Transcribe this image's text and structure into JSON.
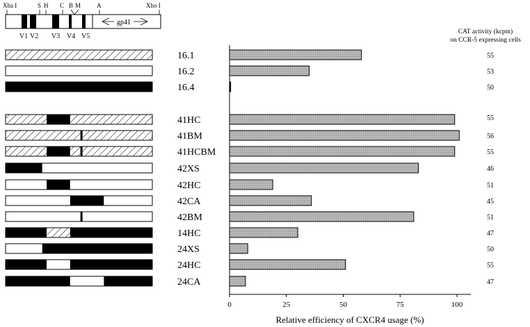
{
  "header_map": {
    "sites": [
      "Xba I",
      "S",
      "H",
      "C",
      "B",
      "M",
      "A",
      "Xho I"
    ],
    "variable_regions": [
      "V1",
      "V2",
      "V3",
      "V4",
      "V5"
    ],
    "gp41_label": "gp41"
  },
  "cat_header": {
    "line1": "CAT activity (kcpm)",
    "line2": "on CCR-5 expressing cells"
  },
  "chart_data": {
    "type": "bar",
    "orientation": "horizontal",
    "categories": [
      "16.1",
      "16.2",
      "16.4",
      "41HC",
      "41BM",
      "41HCBM",
      "42XS",
      "42HC",
      "42CA",
      "42BM",
      "14HC",
      "24XS",
      "24HC",
      "24CA"
    ],
    "groups": [
      [
        "16.1",
        "16.2",
        "16.4"
      ],
      [
        "41HC",
        "41BM",
        "41HCBM",
        "42XS",
        "42HC",
        "42CA",
        "42BM",
        "14HC",
        "24XS",
        "24HC",
        "24CA"
      ]
    ],
    "values": [
      58,
      35,
      0.5,
      99,
      101,
      99,
      83,
      19,
      36,
      81,
      30,
      8,
      51,
      7
    ],
    "cat_activity": [
      "55",
      "53",
      "50",
      "55",
      "56",
      "55",
      "46",
      "51",
      "45",
      "51",
      "47",
      "50",
      "55",
      "47"
    ],
    "xlabel": "Relative efficiency of CXCR4 usage (%)",
    "xlim": [
      0,
      105
    ],
    "xticks": [
      0,
      25,
      50,
      75,
      100
    ],
    "grid": false,
    "bar_color": "#b5b5b5"
  },
  "constructs": [
    {
      "name": "16.1",
      "segments": [
        [
          "hatch",
          0,
          1
        ]
      ]
    },
    {
      "name": "16.2",
      "segments": [
        [
          "white",
          0,
          1
        ]
      ]
    },
    {
      "name": "16.4",
      "segments": [
        [
          "black",
          0,
          1
        ]
      ]
    },
    {
      "name": "41HC",
      "segments": [
        [
          "hatch",
          0,
          0.28
        ],
        [
          "black",
          0.28,
          0.44
        ],
        [
          "hatch",
          0.44,
          1
        ]
      ]
    },
    {
      "name": "41BM",
      "segments": [
        [
          "hatch",
          0,
          0.51
        ],
        [
          "black",
          0.51,
          0.525
        ],
        [
          "hatch",
          0.525,
          1
        ]
      ]
    },
    {
      "name": "41HCBM",
      "segments": [
        [
          "hatch",
          0,
          0.28
        ],
        [
          "black",
          0.28,
          0.44
        ],
        [
          "hatch",
          0.44,
          0.51
        ],
        [
          "black",
          0.51,
          0.525
        ],
        [
          "hatch",
          0.525,
          1
        ]
      ]
    },
    {
      "name": "42XS",
      "segments": [
        [
          "black",
          0,
          0.25
        ],
        [
          "white",
          0.25,
          1
        ]
      ]
    },
    {
      "name": "42HC",
      "segments": [
        [
          "white",
          0,
          0.28
        ],
        [
          "black",
          0.28,
          0.44
        ],
        [
          "white",
          0.44,
          1
        ]
      ]
    },
    {
      "name": "42CA",
      "segments": [
        [
          "white",
          0,
          0.44
        ],
        [
          "black",
          0.44,
          0.67
        ],
        [
          "white",
          0.67,
          1
        ]
      ]
    },
    {
      "name": "42BM",
      "segments": [
        [
          "white",
          0,
          0.51
        ],
        [
          "black",
          0.51,
          0.525
        ],
        [
          "white",
          0.525,
          1
        ]
      ]
    },
    {
      "name": "14HC",
      "segments": [
        [
          "black",
          0,
          0.28
        ],
        [
          "hatch",
          0.28,
          0.44
        ],
        [
          "black",
          0.44,
          1
        ]
      ]
    },
    {
      "name": "24XS",
      "segments": [
        [
          "white",
          0,
          0.25
        ],
        [
          "black",
          0.25,
          1
        ]
      ]
    },
    {
      "name": "24HC",
      "segments": [
        [
          "black",
          0,
          0.28
        ],
        [
          "white",
          0.28,
          0.44
        ],
        [
          "black",
          0.44,
          1
        ]
      ]
    },
    {
      "name": "24CA",
      "segments": [
        [
          "black",
          0,
          0.44
        ],
        [
          "white",
          0.44,
          0.67
        ],
        [
          "black",
          0.67,
          1
        ]
      ]
    }
  ]
}
